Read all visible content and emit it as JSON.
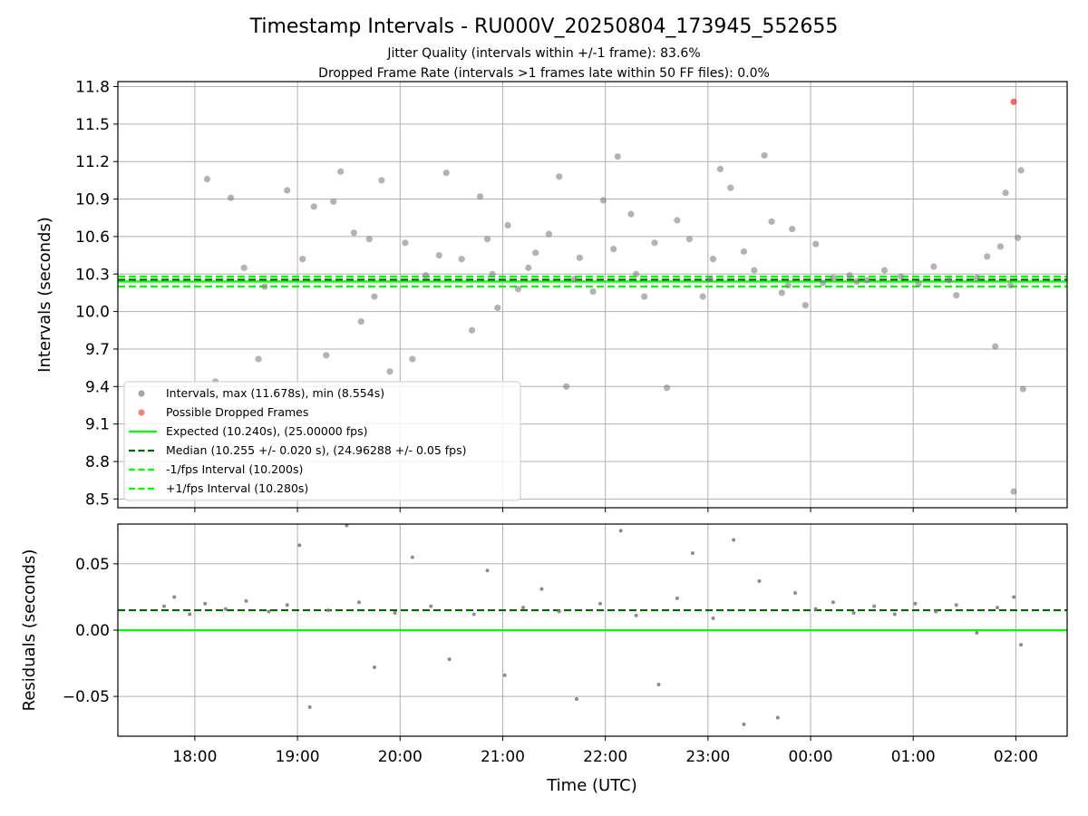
{
  "chart_data": {
    "type": "scatter",
    "title": "Timestamp Intervals - RU000V_20250804_173945_552655",
    "subtitle_lines": [
      "Jitter Quality (intervals within +/-1 frame): 83.6%",
      "Dropped Frame Rate (intervals >1 frames late within 50 FF files): 0.0%"
    ],
    "xlabel": "Time (UTC)",
    "x_range_hours": [
      17.25,
      2.5
    ],
    "x_ticks": [
      {
        "hour": 18,
        "label": "18:00"
      },
      {
        "hour": 19,
        "label": "19:00"
      },
      {
        "hour": 20,
        "label": "20:00"
      },
      {
        "hour": 21,
        "label": "21:00"
      },
      {
        "hour": 22,
        "label": "22:00"
      },
      {
        "hour": 23,
        "label": "23:00"
      },
      {
        "hour": 0,
        "label": "00:00"
      },
      {
        "hour": 1,
        "label": "01:00"
      },
      {
        "hour": 2,
        "label": "02:00"
      }
    ],
    "grid": true,
    "top_panel": {
      "ylabel": "Intervals (seconds)",
      "ylim": [
        8.43,
        11.84
      ],
      "yticks": [
        8.5,
        8.8,
        9.1,
        9.4,
        9.7,
        10.0,
        10.3,
        10.6,
        10.9,
        11.2,
        11.5,
        11.8
      ],
      "ytick_labels": [
        "8.5",
        "8.8",
        "9.1",
        "9.4",
        "9.7",
        "10.0",
        "10.3",
        "10.6",
        "10.9",
        "11.2",
        "11.5",
        "11.8"
      ],
      "lines": {
        "expected": 10.24,
        "median": 10.255,
        "minus_one_fps": 10.2,
        "plus_one_fps": 10.28
      },
      "intervals_max": 11.678,
      "intervals_min": 8.554,
      "dropped_frames": [
        {
          "x_hour": 1.98,
          "y": 11.678
        }
      ],
      "intervals_points": [
        [
          18.12,
          11.06
        ],
        [
          18.35,
          10.91
        ],
        [
          18.48,
          10.35
        ],
        [
          18.62,
          9.62
        ],
        [
          18.9,
          10.97
        ],
        [
          19.05,
          10.42
        ],
        [
          19.16,
          10.84
        ],
        [
          19.35,
          10.88
        ],
        [
          19.42,
          11.12
        ],
        [
          19.55,
          10.63
        ],
        [
          19.62,
          9.92
        ],
        [
          19.7,
          10.58
        ],
        [
          19.82,
          11.05
        ],
        [
          19.9,
          9.52
        ],
        [
          20.05,
          10.55
        ],
        [
          20.12,
          9.62
        ],
        [
          20.38,
          10.45
        ],
        [
          20.45,
          11.11
        ],
        [
          20.6,
          10.42
        ],
        [
          20.7,
          9.85
        ],
        [
          20.78,
          10.92
        ],
        [
          20.85,
          10.58
        ],
        [
          20.95,
          10.03
        ],
        [
          21.05,
          10.69
        ],
        [
          21.15,
          10.18
        ],
        [
          21.25,
          10.35
        ],
        [
          21.32,
          10.47
        ],
        [
          21.45,
          10.62
        ],
        [
          21.55,
          11.08
        ],
        [
          21.62,
          9.4
        ],
        [
          21.75,
          10.43
        ],
        [
          21.88,
          10.16
        ],
        [
          21.98,
          10.89
        ],
        [
          22.08,
          10.5
        ],
        [
          22.12,
          11.24
        ],
        [
          22.25,
          10.78
        ],
        [
          22.38,
          10.12
        ],
        [
          22.48,
          10.55
        ],
        [
          22.6,
          9.39
        ],
        [
          22.7,
          10.73
        ],
        [
          22.82,
          10.58
        ],
        [
          22.95,
          10.12
        ],
        [
          23.05,
          10.42
        ],
        [
          23.12,
          11.14
        ],
        [
          23.22,
          10.99
        ],
        [
          23.35,
          10.48
        ],
        [
          23.45,
          10.33
        ],
        [
          23.55,
          11.25
        ],
        [
          23.62,
          10.72
        ],
        [
          23.72,
          10.15
        ],
        [
          23.82,
          10.66
        ],
        [
          23.95,
          10.05
        ],
        [
          0.05,
          10.54
        ],
        [
          0.12,
          10.23
        ],
        [
          0.22,
          10.27
        ],
        [
          0.38,
          10.29
        ],
        [
          0.55,
          10.25
        ],
        [
          0.72,
          10.33
        ],
        [
          0.88,
          10.28
        ],
        [
          1.05,
          10.22
        ],
        [
          1.2,
          10.36
        ],
        [
          1.42,
          10.13
        ],
        [
          1.62,
          10.27
        ],
        [
          1.72,
          10.44
        ],
        [
          1.8,
          9.72
        ],
        [
          1.85,
          10.52
        ],
        [
          1.9,
          10.95
        ],
        [
          1.95,
          10.21
        ],
        [
          2.02,
          10.59
        ],
        [
          2.05,
          11.13
        ],
        [
          2.07,
          9.38
        ],
        [
          1.98,
          8.56
        ],
        [
          18.2,
          9.44
        ],
        [
          18.68,
          10.2
        ],
        [
          19.28,
          9.65
        ],
        [
          19.75,
          10.12
        ],
        [
          20.25,
          10.29
        ],
        [
          20.9,
          10.3
        ],
        [
          21.7,
          10.26
        ],
        [
          22.3,
          10.3
        ],
        [
          23.02,
          10.26
        ],
        [
          23.78,
          10.21
        ],
        [
          0.45,
          10.24
        ],
        [
          1.35,
          10.25
        ]
      ]
    },
    "bottom_panel": {
      "ylabel": "Residuals (seconds)",
      "ylim": [
        -0.08,
        0.08
      ],
      "yticks": [
        -0.05,
        0.0,
        0.05
      ],
      "ytick_labels": [
        "−0.05",
        "0.00",
        "0.05"
      ],
      "lines": {
        "expected": 0.0,
        "median": 0.015
      },
      "points": [
        [
          17.7,
          0.018
        ],
        [
          17.8,
          0.025
        ],
        [
          17.95,
          0.012
        ],
        [
          18.1,
          0.02
        ],
        [
          18.3,
          0.016
        ],
        [
          18.5,
          0.022
        ],
        [
          18.72,
          0.014
        ],
        [
          18.9,
          0.019
        ],
        [
          19.02,
          0.064
        ],
        [
          19.12,
          -0.058
        ],
        [
          19.3,
          0.015
        ],
        [
          19.48,
          0.079
        ],
        [
          19.6,
          0.021
        ],
        [
          19.75,
          -0.028
        ],
        [
          19.95,
          0.013
        ],
        [
          20.12,
          0.055
        ],
        [
          20.3,
          0.018
        ],
        [
          20.48,
          -0.022
        ],
        [
          20.72,
          0.012
        ],
        [
          20.85,
          0.045
        ],
        [
          21.02,
          -0.034
        ],
        [
          21.2,
          0.017
        ],
        [
          21.38,
          0.031
        ],
        [
          21.55,
          0.014
        ],
        [
          21.72,
          -0.052
        ],
        [
          21.95,
          0.02
        ],
        [
          22.15,
          0.075
        ],
        [
          22.3,
          0.011
        ],
        [
          22.52,
          -0.041
        ],
        [
          22.7,
          0.024
        ],
        [
          22.85,
          0.058
        ],
        [
          23.05,
          0.009
        ],
        [
          23.25,
          0.068
        ],
        [
          23.35,
          -0.071
        ],
        [
          23.5,
          0.037
        ],
        [
          23.68,
          -0.066
        ],
        [
          23.85,
          0.028
        ],
        [
          0.05,
          0.016
        ],
        [
          0.22,
          0.021
        ],
        [
          0.42,
          0.013
        ],
        [
          0.62,
          0.018
        ],
        [
          0.82,
          0.012
        ],
        [
          1.02,
          0.02
        ],
        [
          1.22,
          0.014
        ],
        [
          1.42,
          0.019
        ],
        [
          1.62,
          -0.002
        ],
        [
          1.82,
          0.017
        ],
        [
          1.98,
          0.025
        ],
        [
          2.05,
          -0.011
        ]
      ]
    },
    "legend": {
      "placement": "lower-left",
      "entries": [
        {
          "label": "Intervals, max (11.678s), min (8.554s)",
          "marker": "dot",
          "color": "#808080"
        },
        {
          "label": "Possible Dropped Frames",
          "marker": "dot",
          "color": "#f05050"
        },
        {
          "label": "Expected (10.240s), (25.00000 fps)",
          "marker": "solid-line",
          "color": "#00ff00"
        },
        {
          "label": "Median (10.255 +/- 0.020 s), (24.96288 +/- 0.05 fps)",
          "marker": "dashed-line",
          "color": "#006400"
        },
        {
          "label": "-1/fps Interval (10.200s)",
          "marker": "dashed-line",
          "color": "#00ff00"
        },
        {
          "label": "+1/fps Interval (10.280s)",
          "marker": "dashed-line",
          "color": "#00ff00"
        }
      ]
    },
    "colors": {
      "points": "#808080",
      "dropped": "#f05050",
      "expected": "#00ff00",
      "median": "#006400",
      "grid": "#b0b0b0"
    }
  }
}
